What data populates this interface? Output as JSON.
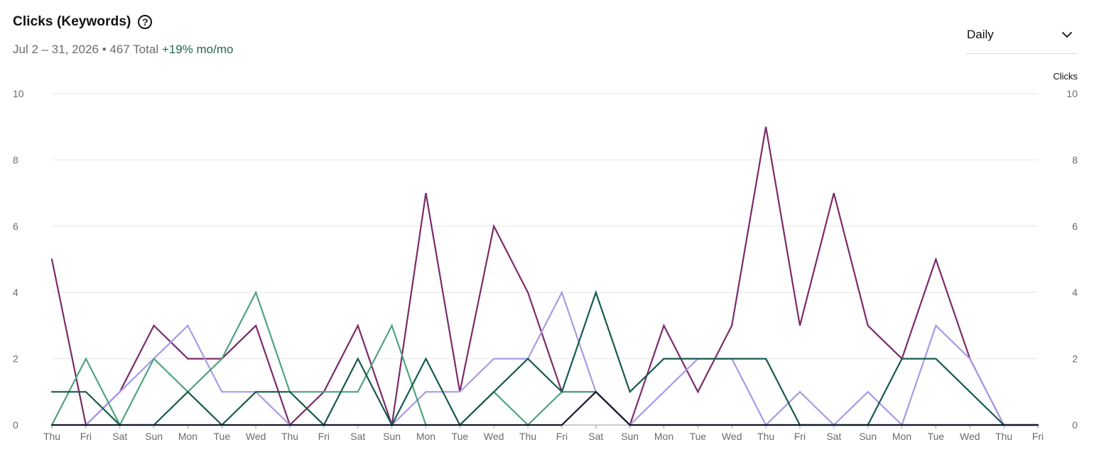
{
  "header": {
    "title": "Clicks (Keywords)",
    "help_glyph": "?",
    "date_range": "Jul 2 – 31, 2026",
    "separator": "•",
    "total": "467 Total",
    "growth": "+19% mo/mo"
  },
  "controls": {
    "granularity": "Daily",
    "granularity_icon": "chevron-down-icon"
  },
  "chart_data": {
    "type": "line",
    "title": "Clicks (Keywords)",
    "xlabel": "",
    "ylabel": "",
    "y2label": "Clicks",
    "ylim": [
      0,
      10
    ],
    "yticks": [
      0,
      2,
      4,
      6,
      8,
      10
    ],
    "grid": true,
    "legend": "none",
    "categories": [
      "Thu",
      "Fri",
      "Sat",
      "Sun",
      "Mon",
      "Tue",
      "Wed",
      "Thu",
      "Fri",
      "Sat",
      "Sun",
      "Mon",
      "Tue",
      "Wed",
      "Thu",
      "Fri",
      "Sat",
      "Sun",
      "Mon",
      "Tue",
      "Wed",
      "Thu",
      "Fri",
      "Sat",
      "Sun",
      "Mon",
      "Tue",
      "Wed",
      "Thu",
      "Fri"
    ],
    "series": [
      {
        "color": "#7b2a6b",
        "values": [
          5,
          0,
          1,
          3,
          2,
          2,
          3,
          0,
          1,
          3,
          0,
          7,
          1,
          6,
          4,
          1,
          1,
          0,
          3,
          1,
          3,
          9,
          3,
          7,
          3,
          2,
          5,
          2,
          0,
          0
        ]
      },
      {
        "color": "#a99ae6",
        "values": [
          0,
          0,
          1,
          2,
          3,
          1,
          1,
          0,
          0,
          0,
          0,
          1,
          1,
          2,
          2,
          4,
          1,
          0,
          1,
          2,
          2,
          0,
          1,
          0,
          1,
          0,
          3,
          2,
          0,
          0
        ]
      },
      {
        "color": "#4ea37e",
        "values": [
          0,
          2,
          0,
          2,
          1,
          2,
          4,
          1,
          1,
          1,
          3,
          0,
          0,
          1,
          0,
          1,
          1,
          0,
          0,
          0,
          0,
          0,
          0,
          0,
          0,
          0,
          0,
          0,
          0,
          0
        ]
      },
      {
        "color": "#155a4e",
        "values": [
          1,
          1,
          0,
          0,
          1,
          0,
          1,
          1,
          0,
          2,
          0,
          2,
          0,
          1,
          2,
          1,
          4,
          1,
          2,
          2,
          2,
          2,
          0,
          0,
          0,
          2,
          2,
          1,
          0,
          0
        ]
      },
      {
        "color": "#161630",
        "values": [
          0,
          0,
          0,
          0,
          0,
          0,
          0,
          0,
          0,
          0,
          0,
          0,
          0,
          0,
          0,
          0,
          1,
          0,
          0,
          0,
          0,
          0,
          0,
          0,
          0,
          0,
          0,
          0,
          0,
          0
        ]
      }
    ]
  }
}
